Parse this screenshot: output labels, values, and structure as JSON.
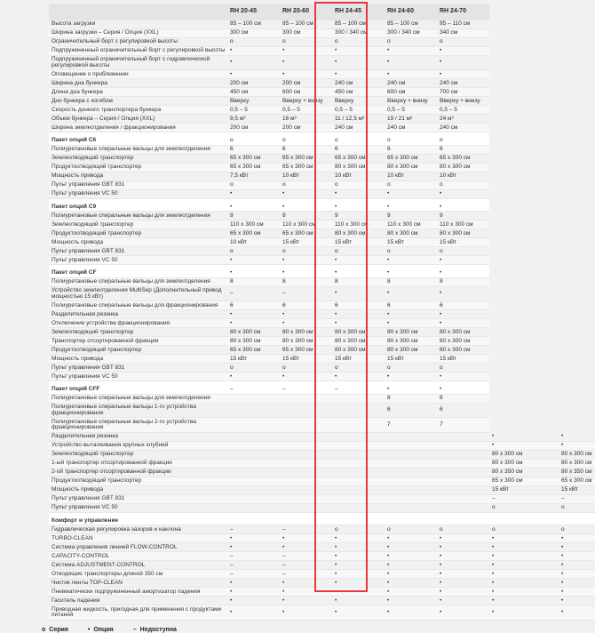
{
  "colors": {
    "highlight": "#e8383a",
    "header_bg": "#e4e4e4",
    "stripe": "#f7f7f7",
    "page_bg": "#f2f1f2"
  },
  "legend": {
    "items": [
      {
        "symbol": "o",
        "label": "Серия"
      },
      {
        "symbol": "•",
        "label": "Опция"
      },
      {
        "symbol": "–",
        "label": "Недоступна"
      }
    ]
  },
  "table": {
    "highlighted_column": "RH 24-45",
    "columns": [
      {
        "label": ""
      },
      {
        "label": "RH 20-45"
      },
      {
        "label": "RH 20-60"
      },
      {
        "label": "RH 24-45"
      },
      {
        "label": "RH 24-60"
      },
      {
        "label": "RH 24-70"
      },
      {
        "label": "",
        "ghost": true
      },
      {
        "label": "",
        "ghost": true
      }
    ],
    "rows": [
      {
        "label": "Высота загрузки",
        "values": [
          "85 – 100 см",
          "85 – 100 см",
          "85 – 100 см",
          "85 – 100 см",
          "95 – 110 см",
          "",
          ""
        ]
      },
      {
        "label": "Ширина загрузки – Серия / Опция (XXL)",
        "values": [
          "300 см",
          "300 см",
          "300 / 340 см",
          "300 / 340 см",
          "340 см",
          "",
          ""
        ]
      },
      {
        "label": "Ограничительный борт с регулировкой высоты",
        "values": [
          "o",
          "o",
          "o",
          "o",
          "o",
          "",
          ""
        ]
      },
      {
        "label": "Подпружиненный ограничительный борт с регулировкой высоты",
        "values": [
          "•",
          "•",
          "•",
          "•",
          "•",
          "",
          ""
        ]
      },
      {
        "label": "Подпружиненный ограничительный борт с гидравлической регулировкой высоты",
        "values": [
          "•",
          "•",
          "•",
          "•",
          "•",
          "",
          ""
        ]
      },
      {
        "label": "Оповещение о приближении",
        "values": [
          "•",
          "•",
          "•",
          "•",
          "•",
          "",
          ""
        ]
      },
      {
        "label": "Ширина дна бункера",
        "values": [
          "200 см",
          "200 см",
          "240 см",
          "240 см",
          "240 см",
          "",
          ""
        ]
      },
      {
        "label": "Длина дна бункера",
        "values": [
          "450 см",
          "600 см",
          "450 см",
          "600 см",
          "700 см",
          "",
          ""
        ]
      },
      {
        "label": "Дно бункера с изгибом",
        "values": [
          "Вверху",
          "Вверху + внизу",
          "Вверху",
          "Вверху + внизу",
          "Вверху + внизу",
          "",
          ""
        ]
      },
      {
        "label": "Скорость донного транспортера бункера",
        "values": [
          "0,5 – 5",
          "0,5 – 5",
          "0,5 – 5",
          "0,5 – 5",
          "0,5 – 5",
          "",
          ""
        ]
      },
      {
        "label": "Объем бункера – Серия / Опция (XXL)",
        "values": [
          "9,5 м³",
          "16 м³",
          "11 / 12,5 м³",
          "19 / 21 м³",
          "24 м³",
          "",
          ""
        ]
      },
      {
        "label": "Ширина землеотделения / фракционирования",
        "values": [
          "200 см",
          "200 см",
          "240 см",
          "240 см",
          "240 см",
          "",
          ""
        ]
      },
      {
        "label": "Пакет опций C6",
        "type": "section",
        "values": [
          "o",
          "o",
          "o",
          "o",
          "o",
          "",
          ""
        ]
      },
      {
        "label": "Полиуретановые спиральные вальцы для землеотделения",
        "values": [
          "6",
          "6",
          "6",
          "6",
          "6",
          "",
          ""
        ]
      },
      {
        "label": "Землеотводящий транспортер",
        "values": [
          "65 x 300 см",
          "65 x 300 см",
          "65 x 300 см",
          "65 x 300 см",
          "65 x 300 см",
          "",
          ""
        ]
      },
      {
        "label": "Продуктоотводящий транспортер",
        "values": [
          "65 x 300 см",
          "65 x 300 см",
          "80 x 300 см",
          "80 x 300 см",
          "80 x 300 см",
          "",
          ""
        ]
      },
      {
        "label": "Мощность привода",
        "values": [
          "7,5 кВт",
          "10 кВт",
          "10 кВт",
          "10 кВт",
          "10 кВт",
          "",
          ""
        ]
      },
      {
        "label": "Пульт управления GBT 831",
        "values": [
          "o",
          "o",
          "o",
          "o",
          "o",
          "",
          ""
        ]
      },
      {
        "label": "Пульт управления VC 50",
        "values": [
          "•",
          "•",
          "•",
          "•",
          "•",
          "",
          ""
        ]
      },
      {
        "label": "Пакет опций C9",
        "type": "section",
        "values": [
          "•",
          "•",
          "•",
          "•",
          "•",
          "",
          ""
        ]
      },
      {
        "label": "Полиуретановые спиральные вальцы для землеотделения",
        "values": [
          "9",
          "9",
          "9",
          "9",
          "9",
          "",
          ""
        ]
      },
      {
        "label": "Землеотводящий транспортер",
        "values": [
          "110 x 300 см",
          "110 x 300 см",
          "110 x 300 см",
          "110 x 300 см",
          "110 x 300 см",
          "",
          ""
        ]
      },
      {
        "label": "Продуктоотводящий транспортер",
        "values": [
          "65 x 300 см",
          "65 x 300 см",
          "80 x 300 см",
          "80 x 300 см",
          "80 x 300 см",
          "",
          ""
        ]
      },
      {
        "label": "Мощность привода",
        "values": [
          "10 кВт",
          "15 кВт",
          "15 кВт",
          "15 кВт",
          "15 кВт",
          "",
          ""
        ]
      },
      {
        "label": "Пульт управления GBT 831",
        "values": [
          "o",
          "o",
          "o",
          "o",
          "o",
          "",
          ""
        ]
      },
      {
        "label": "Пульт управления VC 50",
        "values": [
          "•",
          "•",
          "•",
          "•",
          "•",
          "",
          ""
        ]
      },
      {
        "label": "Пакет опций CF",
        "type": "section",
        "values": [
          "•",
          "•",
          "•",
          "•",
          "•",
          "",
          ""
        ]
      },
      {
        "label": "Полиуретановые спиральные вальцы для землеотделения",
        "values": [
          "8",
          "8",
          "8",
          "8",
          "8",
          "",
          ""
        ]
      },
      {
        "label": "Устройство землеотделения MultiSep (Дополнительный привод мощностью 15 кВт)",
        "values": [
          "–",
          "–",
          "•",
          "•",
          "•",
          "",
          ""
        ]
      },
      {
        "label": "Полиуретановые спиральные вальцы для фракционирования",
        "values": [
          "6",
          "6",
          "6",
          "6",
          "6",
          "",
          ""
        ]
      },
      {
        "label": "Разделительная резинка",
        "values": [
          "•",
          "•",
          "•",
          "•",
          "•",
          "",
          ""
        ]
      },
      {
        "label": "Отключение устройства фракционирования",
        "values": [
          "•",
          "•",
          "•",
          "•",
          "•",
          "",
          ""
        ]
      },
      {
        "label": "Землеотводящий транспортер",
        "values": [
          "80 x 300 см",
          "80 x 300 см",
          "80 x 300 см",
          "80 x 300 см",
          "80 x 300 см",
          "",
          ""
        ]
      },
      {
        "label": "Транспортер отсортированной фракции",
        "values": [
          "80 x 300 см",
          "80 x 300 см",
          "80 x 300 см",
          "80 x 300 см",
          "80 x 300 см",
          "",
          ""
        ]
      },
      {
        "label": "Продуктоотводящий транспортер",
        "values": [
          "65 x 300 см",
          "65 x 300 см",
          "80 x 300 см",
          "80 x 300 см",
          "80 x 300 см",
          "",
          ""
        ]
      },
      {
        "label": "Мощность привода",
        "values": [
          "15 кВт",
          "15 кВт",
          "15 кВт",
          "15 кВт",
          "15 кВт",
          "",
          ""
        ]
      },
      {
        "label": "Пульт управления GBT 831",
        "values": [
          "o",
          "o",
          "o",
          "o",
          "o",
          "",
          ""
        ]
      },
      {
        "label": "Пульт управления VC 50",
        "values": [
          "•",
          "•",
          "•",
          "•",
          "•",
          "",
          ""
        ]
      },
      {
        "label": "Пакет опций CFF",
        "type": "section",
        "values": [
          "–",
          "–",
          "–",
          "•",
          "•",
          "",
          ""
        ]
      },
      {
        "label": "Полиуретановые спиральные вальцы для землеотделения",
        "values": [
          "",
          "",
          "",
          "8",
          "8",
          "",
          ""
        ]
      },
      {
        "label": "Полиуретановые спиральные вальцы 1-го устройства фракционирования",
        "values": [
          "",
          "",
          "",
          "6",
          "6",
          "",
          ""
        ]
      },
      {
        "label": "Полиуретановые спиральные вальцы 2-го устройства фракционирования",
        "values": [
          "",
          "",
          "",
          "7",
          "7",
          "",
          ""
        ]
      },
      {
        "label": "Разделительная резинка",
        "wide": true,
        "values": [
          "",
          "",
          "",
          "",
          "",
          "•",
          "•"
        ]
      },
      {
        "label": "Устройство выталкивания крупных клубней",
        "wide": true,
        "values": [
          "",
          "",
          "",
          "",
          "",
          "•",
          "•"
        ]
      },
      {
        "label": "Землеотводящий транспортер",
        "wide": true,
        "values": [
          "",
          "",
          "",
          "",
          "",
          "80 x 300 см",
          "80 x 300 см"
        ]
      },
      {
        "label": "1-ый транспортер отсортированной фракции",
        "wide": true,
        "values": [
          "",
          "",
          "",
          "",
          "",
          "80 x 300 см",
          "80 x 300 см"
        ]
      },
      {
        "label": "2-ой транспортер отсортированной фракции",
        "wide": true,
        "values": [
          "",
          "",
          "",
          "",
          "",
          "80 x 350 см",
          "80 x 350 см"
        ]
      },
      {
        "label": "Продуктоотводящий транспортер",
        "wide": true,
        "values": [
          "",
          "",
          "",
          "",
          "",
          "65 x 300 см",
          "65 x 300 см"
        ]
      },
      {
        "label": "Мощность привода",
        "wide": true,
        "values": [
          "",
          "",
          "",
          "",
          "",
          "15 кВт",
          "15 кВт"
        ]
      },
      {
        "label": "Пульт управления GBT 831",
        "wide": true,
        "values": [
          "",
          "",
          "",
          "",
          "",
          "–",
          "–"
        ]
      },
      {
        "label": "Пульт управления VC 50",
        "wide": true,
        "values": [
          "",
          "",
          "",
          "",
          "",
          "o",
          "o"
        ]
      },
      {
        "label": "Комфорт и управление",
        "type": "section",
        "wide": true,
        "values": [
          "",
          "",
          "",
          "",
          "",
          "",
          ""
        ]
      },
      {
        "label": "Гидравлическая регулировка зазоров и наклона",
        "wide": true,
        "values": [
          "–",
          "–",
          "o",
          "o",
          "o",
          "o",
          "o"
        ]
      },
      {
        "label": "TURBO-CLEAN",
        "wide": true,
        "values": [
          "•",
          "•",
          "•",
          "•",
          "•",
          "•",
          "•"
        ]
      },
      {
        "label": "Система управления линией FLOW-CONTROL",
        "wide": true,
        "values": [
          "•",
          "•",
          "•",
          "•",
          "•",
          "•",
          "•"
        ]
      },
      {
        "label": "CAPACITY-CONTROL",
        "wide": true,
        "values": [
          "–",
          "–",
          "•",
          "•",
          "•",
          "•",
          "•"
        ]
      },
      {
        "label": "Система ADJUSTMENT-CONTROL",
        "wide": true,
        "values": [
          "–",
          "–",
          "•",
          "•",
          "•",
          "•",
          "•"
        ]
      },
      {
        "label": "Отводящие транспортеры длиной 350 см",
        "wide": true,
        "values": [
          "–",
          "–",
          "•",
          "•",
          "•",
          "•",
          "•"
        ]
      },
      {
        "label": "Чистик ленты TOP-CLEAN",
        "wide": true,
        "values": [
          "•",
          "•",
          "•",
          "•",
          "•",
          "•",
          "•"
        ]
      },
      {
        "label": "Пневматически подпружиненный амортизатор падения",
        "wide": true,
        "values": [
          "•",
          "•",
          "•",
          "•",
          "•",
          "•",
          "•"
        ]
      },
      {
        "label": "Гаситель падения",
        "wide": true,
        "values": [
          "•",
          "•",
          "•",
          "•",
          "•",
          "•",
          "•"
        ]
      },
      {
        "label": "Приводная жидкость, пригодная для применения с продуктами питания",
        "wide": true,
        "values": [
          "•",
          "•",
          "•",
          "•",
          "•",
          "•",
          "•"
        ]
      }
    ]
  }
}
